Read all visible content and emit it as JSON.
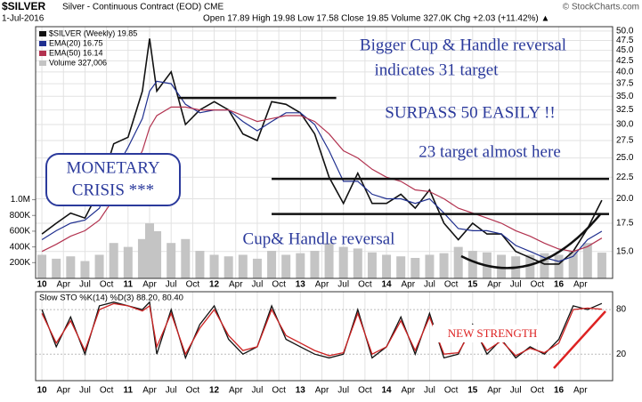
{
  "header": {
    "ticker": "$SILVER",
    "name": "Silver - Continuous Contract (EOD) CME",
    "date": "1-Jul-2016",
    "quote": "Open 17.89  High 19.98  Low 17.58  Close 19.85  Volume 327.0K  Chg +2.03 (+11.42%) ▲",
    "credit": "© StockCharts.com"
  },
  "chart_data": [
    {
      "type": "line",
      "log": true,
      "x": [
        "2010-01",
        "2010-03",
        "2010-05",
        "2010-07",
        "2010-09",
        "2010-11",
        "2011-01",
        "2011-03",
        "2011-04",
        "2011-05",
        "2011-07",
        "2011-09",
        "2011-11",
        "2012-01",
        "2012-03",
        "2012-05",
        "2012-07",
        "2012-09",
        "2012-11",
        "2013-01",
        "2013-03",
        "2013-05",
        "2013-07",
        "2013-09",
        "2013-11",
        "2014-01",
        "2014-03",
        "2014-05",
        "2014-07",
        "2014-09",
        "2014-11",
        "2015-01",
        "2015-03",
        "2015-05",
        "2015-07",
        "2015-09",
        "2015-11",
        "2016-01",
        "2016-03",
        "2016-05",
        "2016-07"
      ],
      "xlim": [
        "2009-12",
        "2016-08"
      ],
      "xticks": [
        {
          "value": "2010-01",
          "label": "10"
        },
        {
          "value": "2010-04",
          "label": "Apr"
        },
        {
          "value": "2010-07",
          "label": "Jul"
        },
        {
          "value": "2010-10",
          "label": "Oct"
        },
        {
          "value": "2011-01",
          "label": "11"
        },
        {
          "value": "2011-04",
          "label": "Apr"
        },
        {
          "value": "2011-07",
          "label": "Jul"
        },
        {
          "value": "2011-10",
          "label": "Oct"
        },
        {
          "value": "2012-01",
          "label": "12"
        },
        {
          "value": "2012-04",
          "label": "Apr"
        },
        {
          "value": "2012-07",
          "label": "Jul"
        },
        {
          "value": "2012-10",
          "label": "Oct"
        },
        {
          "value": "2013-01",
          "label": "13"
        },
        {
          "value": "2013-04",
          "label": "Apr"
        },
        {
          "value": "2013-07",
          "label": "Jul"
        },
        {
          "value": "2013-10",
          "label": "Oct"
        },
        {
          "value": "2014-01",
          "label": "14"
        },
        {
          "value": "2014-04",
          "label": "Apr"
        },
        {
          "value": "2014-07",
          "label": "Jul"
        },
        {
          "value": "2014-10",
          "label": "Oct"
        },
        {
          "value": "2015-01",
          "label": "15"
        },
        {
          "value": "2015-04",
          "label": "Apr"
        },
        {
          "value": "2015-07",
          "label": "Jul"
        },
        {
          "value": "2015-10",
          "label": "Oct"
        },
        {
          "value": "2016-01",
          "label": "16"
        },
        {
          "value": "2016-04",
          "label": "Apr"
        }
      ],
      "ylim": [
        12.95,
        51.2
      ],
      "yticks": [
        {
          "value": 15,
          "label": "15.0"
        },
        {
          "value": 17.5,
          "label": "17.5"
        },
        {
          "value": 20,
          "label": "20.0"
        },
        {
          "value": 22.5,
          "label": "22.5"
        },
        {
          "value": 25,
          "label": "25.0"
        },
        {
          "value": 27.5,
          "label": "27.5"
        },
        {
          "value": 30,
          "label": "30.0"
        },
        {
          "value": 32.5,
          "label": "32.5"
        },
        {
          "value": 35,
          "label": "35.0"
        },
        {
          "value": 37.5,
          "label": "37.5"
        },
        {
          "value": 40,
          "label": "40.0"
        },
        {
          "value": 42.5,
          "label": "42.5"
        },
        {
          "value": 45,
          "label": "45.0"
        },
        {
          "value": 47.5,
          "label": "47.5"
        },
        {
          "value": 50,
          "label": "50.0"
        }
      ],
      "y2lim": [
        0,
        3200000
      ],
      "y2ticks": [
        {
          "value": 200000,
          "label": "200K"
        },
        {
          "value": 400000,
          "label": "400K"
        },
        {
          "value": 600000,
          "label": "600K"
        },
        {
          "value": 800000,
          "label": "800K"
        },
        {
          "value": 1000000,
          "label": "1.0M"
        }
      ],
      "series": [
        {
          "name": "$SILVER (Weekly) 19.85",
          "color": "#111111",
          "values": [
            16.5,
            17.5,
            18.5,
            18.0,
            21.0,
            27.0,
            28.0,
            36.0,
            48.0,
            36.0,
            40.0,
            30.0,
            32.5,
            34.0,
            32.5,
            28.5,
            27.5,
            34.0,
            33.5,
            32.0,
            28.5,
            22.5,
            19.5,
            23.0,
            19.5,
            19.5,
            20.5,
            19.0,
            21.0,
            17.5,
            16.0,
            17.5,
            16.5,
            16.5,
            15.0,
            14.5,
            14.0,
            14.0,
            15.0,
            17.0,
            19.85
          ]
        },
        {
          "name": "EMA(20) 16.75",
          "color": "#1f2f8f",
          "values": [
            16.0,
            16.8,
            17.5,
            17.8,
            19.0,
            23.0,
            26.5,
            31.0,
            36.0,
            38.0,
            37.5,
            33.5,
            32.0,
            32.5,
            32.5,
            30.5,
            29.0,
            30.5,
            32.0,
            32.0,
            30.0,
            26.0,
            22.0,
            22.0,
            20.5,
            20.0,
            20.0,
            19.5,
            20.0,
            18.5,
            17.0,
            16.8,
            16.8,
            16.5,
            15.5,
            15.0,
            14.5,
            14.2,
            14.6,
            16.0,
            16.75
          ]
        },
        {
          "name": "EMA(50) 16.14",
          "color": "#b2324f",
          "values": [
            15.0,
            15.6,
            16.3,
            16.8,
            17.8,
            20.0,
            22.5,
            26.0,
            29.5,
            31.5,
            33.0,
            33.0,
            32.5,
            32.5,
            32.5,
            31.5,
            30.5,
            31.0,
            31.5,
            31.5,
            30.5,
            28.5,
            26.0,
            25.0,
            23.5,
            22.5,
            22.0,
            21.0,
            20.8,
            20.0,
            19.0,
            18.5,
            18.0,
            17.5,
            16.8,
            16.3,
            15.7,
            15.2,
            15.0,
            15.4,
            16.14
          ]
        },
        {
          "name": "Volume 327,006",
          "color": "#c4c4c4",
          "axis": "y2",
          "values": [
            300000,
            250000,
            280000,
            220000,
            300000,
            450000,
            400000,
            500000,
            700000,
            600000,
            450000,
            500000,
            350000,
            300000,
            280000,
            300000,
            250000,
            350000,
            300000,
            320000,
            350000,
            450000,
            400000,
            380000,
            330000,
            300000,
            280000,
            260000,
            300000,
            320000,
            400000,
            350000,
            330000,
            300000,
            280000,
            300000,
            320000,
            300000,
            350000,
            450000,
            327006
          ]
        }
      ],
      "levels": [
        {
          "value": 34.7,
          "x": [
            "2011-08",
            "2013-06"
          ]
        },
        {
          "value": 22.3,
          "x": [
            "2012-09",
            "2016-08"
          ]
        },
        {
          "value": 18.4,
          "x": [
            "2012-09",
            "2016-08"
          ]
        }
      ],
      "annotations": [
        "Bigger Cup & Handle reversal",
        "indicates 31 target",
        "SURPASS 50 EASILY !!",
        "23 target almost here",
        "MONETARY",
        "CRISIS ***",
        "Cup& Handle reversal"
      ]
    },
    {
      "type": "line",
      "title": "Slow STO %K(14) %D(3) 88.20, 80.40",
      "ylim": [
        -12,
        104
      ],
      "yticks": [
        20,
        80
      ],
      "series": [
        {
          "name": "%K(14)",
          "color": "#111111",
          "values": [
            80,
            30,
            70,
            20,
            85,
            90,
            85,
            80,
            90,
            20,
            80,
            15,
            60,
            85,
            40,
            20,
            30,
            85,
            40,
            30,
            20,
            15,
            20,
            80,
            15,
            30,
            70,
            20,
            75,
            15,
            20,
            60,
            20,
            40,
            15,
            30,
            20,
            40,
            85,
            80,
            88.2
          ]
        },
        {
          "name": "%D(3)",
          "color": "#cc2222",
          "values": [
            75,
            35,
            65,
            25,
            80,
            88,
            85,
            78,
            85,
            30,
            75,
            20,
            55,
            80,
            45,
            25,
            30,
            80,
            45,
            35,
            25,
            18,
            22,
            75,
            20,
            30,
            65,
            25,
            70,
            20,
            22,
            55,
            25,
            38,
            18,
            28,
            22,
            35,
            80,
            82,
            80.4
          ]
        }
      ],
      "annotations": [
        "NEW STRENGTH"
      ]
    }
  ]
}
